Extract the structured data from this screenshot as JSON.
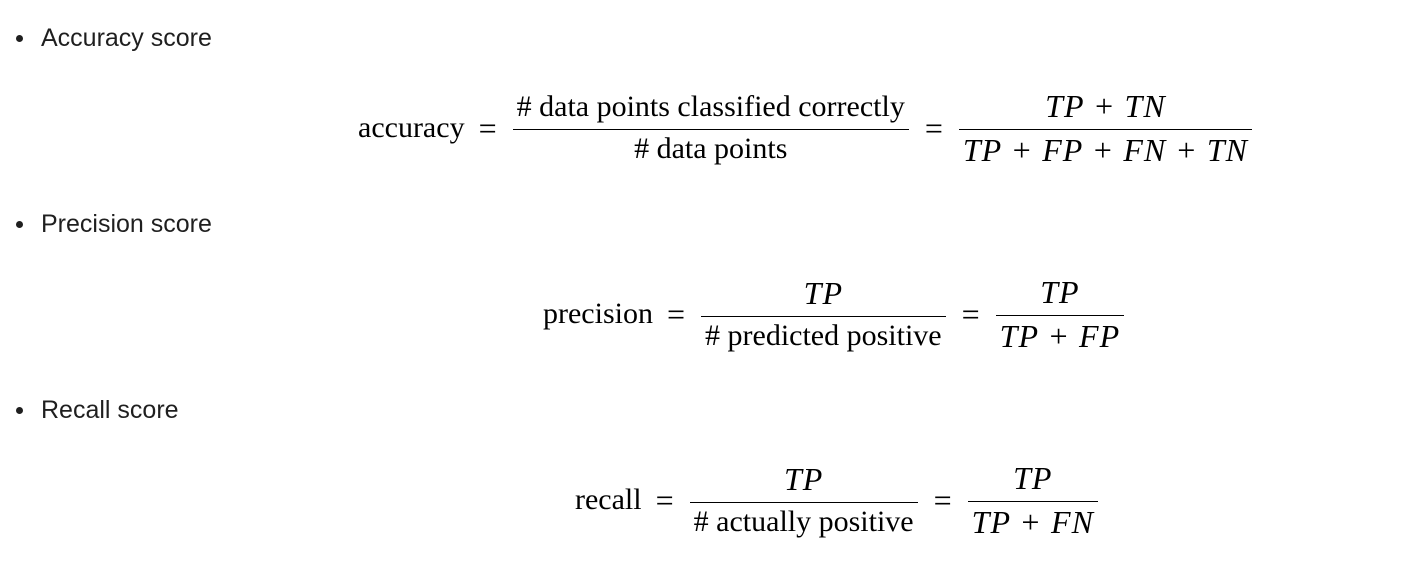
{
  "items": [
    {
      "label": "Accuracy score",
      "name": "accuracy",
      "frac1": {
        "num": "# data points classified correctly",
        "den": "# data points"
      },
      "frac2": {
        "num": "TP + TN",
        "den": "TP + FP + FN + TN"
      }
    },
    {
      "label": "Precision score",
      "name": "precision",
      "frac1": {
        "num": "TP",
        "den": "# predicted positive"
      },
      "frac2": {
        "num": "TP",
        "den": "TP + FP"
      }
    },
    {
      "label": "Recall score",
      "name": "recall",
      "frac1": {
        "num": "TP",
        "den": "# actually positive"
      },
      "frac2": {
        "num": "TP",
        "den": "TP + FN"
      }
    }
  ],
  "equals_sign": "="
}
